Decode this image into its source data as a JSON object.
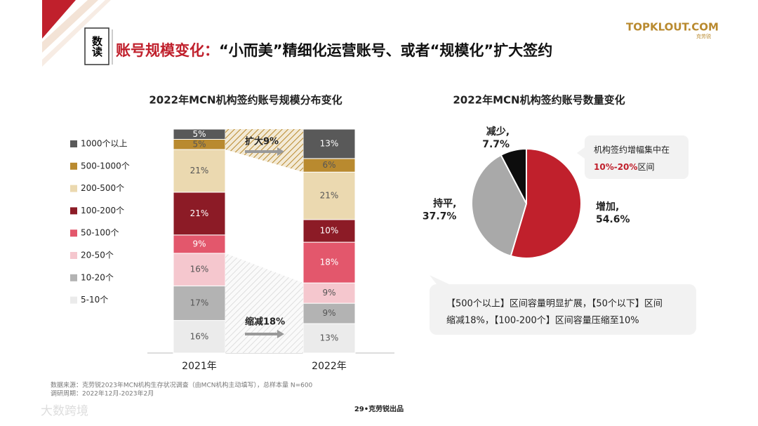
{
  "header": {
    "badge": "数读",
    "title_prefix": "账号规模变化：",
    "title": "“小而美”精细化运营账号、或者“规模化”扩大签约",
    "logo": "TOPKLOUT.COM",
    "logo_sub": "克劳锐"
  },
  "chart_data": [
    {
      "type": "bar",
      "stacked": true,
      "title": "2022年MCN机构签约账号规模分布变化",
      "categories": [
        "2021年",
        "2022年"
      ],
      "series": [
        {
          "name": "5-10个",
          "color": "#ebebeb",
          "values": [
            16,
            13
          ],
          "value_labels": [
            "16%",
            "13%"
          ]
        },
        {
          "name": "10-20个",
          "color": "#b3b3b3",
          "values": [
            17,
            9
          ],
          "value_labels": [
            "17%",
            "9%"
          ]
        },
        {
          "name": "20-50个",
          "color": "#f5c7ce",
          "values": [
            16,
            9
          ],
          "value_labels": [
            "16%",
            "9%"
          ]
        },
        {
          "name": "50-100个",
          "color": "#e3576c",
          "values": [
            9,
            18
          ],
          "value_labels": [
            "9%",
            "18%"
          ]
        },
        {
          "name": "100-200个",
          "color": "#8c1b26",
          "values": [
            21,
            10
          ],
          "value_labels": [
            "21%",
            "10%"
          ]
        },
        {
          "name": "200-500个",
          "color": "#ebd9b0",
          "values": [
            21,
            21
          ],
          "value_labels": [
            "21%",
            "21%"
          ]
        },
        {
          "name": "500-1000个",
          "color": "#b98a2f",
          "values": [
            5,
            6
          ],
          "value_labels": [
            "5%",
            "6%"
          ]
        },
        {
          "name": "1000个以上",
          "color": "#595959",
          "values": [
            5,
            13
          ],
          "value_labels": [
            "5%",
            "13%"
          ]
        }
      ],
      "annotations": [
        "扩大9%",
        "缩减18%"
      ]
    },
    {
      "type": "pie",
      "title": "2022年MCN机构签约账号数量变化",
      "categories": [
        "增加,",
        "持平,",
        "减少,"
      ],
      "values": [
        54.6,
        37.7,
        7.7
      ],
      "value_labels": [
        "54.6%",
        "37.7%",
        "7.7%"
      ],
      "colors": [
        "#c0202c",
        "#a9a9a9",
        "#0d0d0d"
      ]
    }
  ],
  "callouts": {
    "top": {
      "line1": "机构签约增幅集中在",
      "highlight": "10%-20%",
      "rest": "区间"
    },
    "bottom": {
      "line1": "【500个以上】区间容量明显扩展，【50个以下】区间",
      "line2": "缩减18%，【100-200个】区间容量压缩至10%"
    }
  },
  "footer": {
    "source": "数据来源：克劳锐2023年MCN机构生存状况调查（由MCN机构主动填写），总样本量 N=600",
    "period": "调研周期：2022年12月-2023年2月",
    "page": "29•克劳锐出品",
    "watermark": "大数跨境"
  }
}
